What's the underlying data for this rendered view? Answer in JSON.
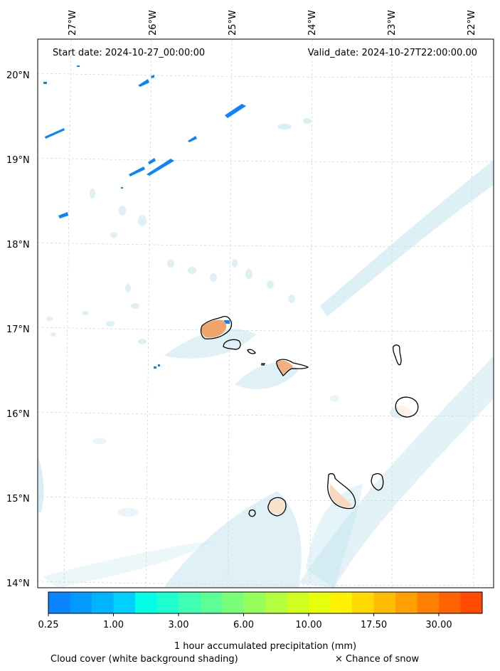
{
  "header": {
    "start_date": "Start date: 2024-10-27_00:00:00",
    "valid_date": "Valid_date: 2024-10-27T22:00:00.00"
  },
  "axes": {
    "lon_labels": [
      "27°W",
      "26°W",
      "25°W",
      "24°W",
      "23°W",
      "22°W"
    ],
    "lat_labels": [
      "20°N",
      "19°N",
      "18°N",
      "17°N",
      "16°N",
      "15°N",
      "14°N"
    ]
  },
  "colorbar": {
    "colors": [
      "#0a84ff",
      "#0399ff",
      "#00b3ff",
      "#00d0ff",
      "#00ffe6",
      "#1fffd0",
      "#3fffb3",
      "#5cff96",
      "#7aff7a",
      "#96ff5c",
      "#b3ff3f",
      "#d0ff1f",
      "#e6ff0a",
      "#fff200",
      "#ffd900",
      "#ffbd00",
      "#ff9f00",
      "#ff8000",
      "#ff6400",
      "#ff4a00"
    ],
    "tick_labels": [
      "0.25",
      "1.00",
      "3.00",
      "6.00",
      "10.00",
      "17.50",
      "30.00"
    ],
    "title": "1 hour accumulated precipitation (mm)"
  },
  "footer": {
    "cloud_note": "Cloud cover (white background shading)",
    "snow_note": "× Chance of snow"
  }
}
